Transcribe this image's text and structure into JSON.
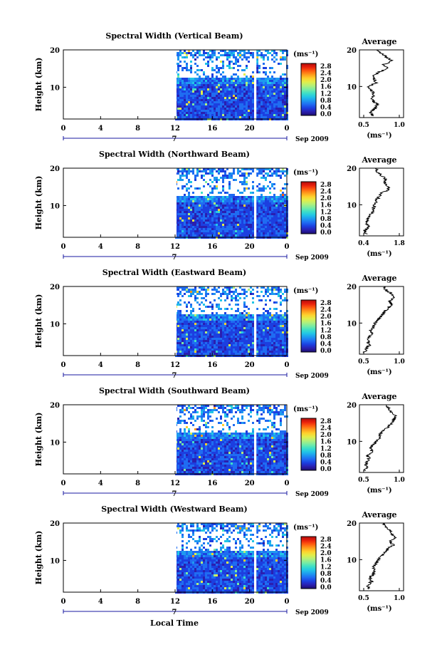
{
  "figure": {
    "xlabel": "Local Time",
    "date_label": "Sep 2009",
    "time_ticks": [
      "0",
      "4",
      "8",
      "12",
      "16",
      "20",
      "0"
    ],
    "day_marker": "7",
    "height_label": "Height (km)",
    "height_ticks": [
      "20",
      "10"
    ],
    "unit_label": "(ms⁻¹)",
    "colorbar_ticks": [
      "2.8",
      "2.4",
      "2.0",
      "1.6",
      "1.2",
      "0.8",
      "0.4",
      "0.0"
    ],
    "colorscale": [
      "#1c0e6e",
      "#2a1fb0",
      "#1c3fe0",
      "#1f6cf2",
      "#1e9af0",
      "#22c6e6",
      "#3fe0c6",
      "#7aeca2",
      "#b3f07a",
      "#e2ee4a",
      "#ffd02c",
      "#ff9a1c",
      "#ff5a10",
      "#e8200c",
      "#b00c0c"
    ],
    "nodata_color": "#ffffff"
  },
  "chart_data": [
    {
      "type": "heatmap",
      "title": "Spectral Width (Vertical Beam)",
      "x_range_hours": [
        0,
        24
      ],
      "data_start_hour": 12,
      "data_gap_hour": 20.5,
      "y_range_km": [
        1.5,
        20
      ],
      "colorbar_range": [
        0.0,
        3.0
      ],
      "clear_band_km": [
        13,
        18
      ],
      "avg": {
        "title": "Average",
        "xlabel": "(ms⁻¹)",
        "xticks": [
          "0.5",
          "1.0"
        ],
        "xlim": [
          0.45,
          1.05
        ],
        "profile": [
          [
            2,
            0.63
          ],
          [
            3,
            0.6
          ],
          [
            4,
            0.66
          ],
          [
            5,
            0.7
          ],
          [
            6,
            0.64
          ],
          [
            7,
            0.62
          ],
          [
            8,
            0.65
          ],
          [
            9,
            0.6
          ],
          [
            10,
            0.58
          ],
          [
            11,
            0.67
          ],
          [
            12,
            0.66
          ],
          [
            13,
            0.64
          ],
          [
            14,
            0.72
          ],
          [
            15,
            0.85
          ],
          [
            16,
            0.78
          ],
          [
            17,
            0.9
          ],
          [
            18,
            0.82
          ],
          [
            19,
            0.75
          ],
          [
            20,
            0.68
          ]
        ]
      }
    },
    {
      "type": "heatmap",
      "title": "Spectral Width (Northward Beam)",
      "x_range_hours": [
        0,
        24
      ],
      "data_start_hour": 12,
      "data_gap_hour": 20.5,
      "y_range_km": [
        1.5,
        20
      ],
      "colorbar_range": [
        0.0,
        3.0
      ],
      "clear_band_km": [
        13,
        18
      ],
      "avg": {
        "title": "Average",
        "xlabel": "(ms⁻¹)",
        "xticks": [
          "0.4",
          "1.8"
        ],
        "xlim": [
          0.3,
          1.9
        ],
        "profile": [
          [
            2,
            0.55
          ],
          [
            3,
            0.5
          ],
          [
            4,
            0.62
          ],
          [
            5,
            0.58
          ],
          [
            6,
            0.6
          ],
          [
            7,
            0.7
          ],
          [
            8,
            0.75
          ],
          [
            9,
            0.8
          ],
          [
            10,
            0.85
          ],
          [
            11,
            0.9
          ],
          [
            12,
            1.0
          ],
          [
            13,
            1.05
          ],
          [
            14,
            1.3
          ],
          [
            15,
            1.35
          ],
          [
            16,
            1.2
          ],
          [
            17,
            1.25
          ],
          [
            18,
            1.1
          ],
          [
            19,
            0.95
          ],
          [
            20,
            0.9
          ]
        ]
      }
    },
    {
      "type": "heatmap",
      "title": "Spectral Width (Eastward Beam)",
      "x_range_hours": [
        0,
        24
      ],
      "data_start_hour": 12,
      "data_gap_hour": 20.5,
      "y_range_km": [
        1.5,
        20
      ],
      "colorbar_range": [
        0.0,
        3.0
      ],
      "clear_band_km": [
        13,
        18
      ],
      "avg": {
        "title": "Average",
        "xlabel": "(ms⁻¹)",
        "xticks": [
          "0.5",
          "1.0"
        ],
        "xlim": [
          0.3,
          1.2
        ],
        "profile": [
          [
            2,
            0.4
          ],
          [
            3,
            0.45
          ],
          [
            4,
            0.5
          ],
          [
            5,
            0.48
          ],
          [
            6,
            0.5
          ],
          [
            7,
            0.55
          ],
          [
            8,
            0.52
          ],
          [
            9,
            0.6
          ],
          [
            10,
            0.62
          ],
          [
            11,
            0.68
          ],
          [
            12,
            0.75
          ],
          [
            13,
            0.8
          ],
          [
            14,
            0.88
          ],
          [
            15,
            0.95
          ],
          [
            16,
            0.92
          ],
          [
            17,
            1.0
          ],
          [
            18,
            0.95
          ],
          [
            19,
            0.85
          ],
          [
            20,
            0.8
          ]
        ]
      }
    },
    {
      "type": "heatmap",
      "title": "Spectral Width (Southward Beam)",
      "x_range_hours": [
        0,
        24
      ],
      "data_start_hour": 12,
      "data_gap_hour": 20.5,
      "y_range_km": [
        1.5,
        20
      ],
      "colorbar_range": [
        0.0,
        3.0
      ],
      "clear_band_km": [
        13,
        18
      ],
      "avg": {
        "title": "Average",
        "xlabel": "(ms⁻¹)",
        "xticks": [
          "0.5",
          "1.0"
        ],
        "xlim": [
          0.35,
          1.25
        ],
        "profile": [
          [
            2,
            0.45
          ],
          [
            3,
            0.5
          ],
          [
            4,
            0.48
          ],
          [
            5,
            0.55
          ],
          [
            6,
            0.52
          ],
          [
            7,
            0.6
          ],
          [
            8,
            0.58
          ],
          [
            9,
            0.62
          ],
          [
            10,
            0.7
          ],
          [
            11,
            0.75
          ],
          [
            12,
            0.78
          ],
          [
            13,
            0.85
          ],
          [
            14,
            0.95
          ],
          [
            15,
            1.0
          ],
          [
            16,
            1.05
          ],
          [
            17,
            1.1
          ],
          [
            18,
            1.0
          ],
          [
            19,
            0.95
          ],
          [
            20,
            0.9
          ]
        ]
      }
    },
    {
      "type": "heatmap",
      "title": "Spectral Width (Westward Beam)",
      "x_range_hours": [
        0,
        24
      ],
      "data_start_hour": 12,
      "data_gap_hour": 20.5,
      "y_range_km": [
        1.5,
        20
      ],
      "colorbar_range": [
        0.0,
        3.0
      ],
      "clear_band_km": [
        13,
        18
      ],
      "avg": {
        "title": "Average",
        "xlabel": "(ms⁻¹)",
        "xticks": [
          "0.5",
          "1.0"
        ],
        "xlim": [
          0.4,
          1.05
        ],
        "profile": [
          [
            2,
            0.55
          ],
          [
            3,
            0.52
          ],
          [
            4,
            0.58
          ],
          [
            5,
            0.55
          ],
          [
            6,
            0.6
          ],
          [
            7,
            0.62
          ],
          [
            8,
            0.6
          ],
          [
            9,
            0.65
          ],
          [
            10,
            0.68
          ],
          [
            11,
            0.72
          ],
          [
            12,
            0.78
          ],
          [
            13,
            0.82
          ],
          [
            14,
            0.9
          ],
          [
            15,
            0.85
          ],
          [
            16,
            0.92
          ],
          [
            17,
            0.88
          ],
          [
            18,
            0.85
          ],
          [
            19,
            0.8
          ],
          [
            20,
            0.75
          ]
        ]
      }
    }
  ]
}
